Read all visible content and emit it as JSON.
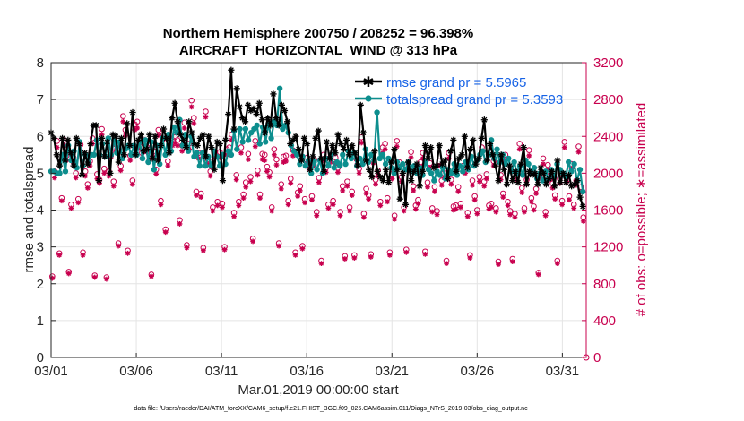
{
  "chart_data": {
    "type": "line",
    "title": "Northern Hemisphere 200750 / 208252 = 96.398%",
    "subtitle": "AIRCRAFT_HORIZONTAL_WIND @ 313 hPa",
    "xlabel": "Mar.01,2019 00:00:00 start",
    "ylabel": "rmse and totalspread",
    "ylabel_right": "# of obs: o=possible; ∗=assimilated",
    "footnote": "data file: /Users/raeder/DAI/ATM_forcXX/CAM6_setup/f.e21.FHIST_BGC.f09_025.CAM6assim.011/Diags_NTrS_2019-03/obs_diag_output.nc",
    "xlim": [
      1,
      32.4
    ],
    "ylim": [
      0,
      8
    ],
    "ylim_right": [
      0,
      3200
    ],
    "x_tick_values": [
      1,
      6,
      11,
      16,
      21,
      26,
      31
    ],
    "x_ticks": [
      "03/01",
      "03/06",
      "03/11",
      "03/16",
      "03/21",
      "03/26",
      "03/31"
    ],
    "y_ticks": [
      "0",
      "1",
      "2",
      "3",
      "4",
      "5",
      "6",
      "7",
      "8"
    ],
    "y_ticks_right": [
      "0",
      "400",
      "800",
      "1200",
      "1600",
      "2000",
      "2400",
      "2800",
      "3200"
    ],
    "grid": true,
    "legend": "top-right",
    "colors": {
      "rmse": "#000000",
      "totalspread": "#0d8e8e",
      "obs": "#c8004e",
      "legend_text": "#1763e6",
      "grid": "#e4e4e4"
    },
    "series": [
      {
        "name": "rmse grand pr = 5.5965",
        "axis": "left",
        "marker": "star",
        "values": [
          6.1,
          5.95,
          5.5,
          5.2,
          5.95,
          5.35,
          5.9,
          5.55,
          5.2,
          5.95,
          5.8,
          4.95,
          5.55,
          5.25,
          5.8,
          6.3,
          6.3,
          4.8,
          5.95,
          5.45,
          5.85,
          5.0,
          6.05,
          6.0,
          5.3,
          5.95,
          5.5,
          6.35,
          5.75,
          6.65,
          5.5,
          5.9,
          6.05,
          5.6,
          5.65,
          6.05,
          5.4,
          6.0,
          5.35,
          5.75,
          6.2,
          5.95,
          5.55,
          6.5,
          6.9,
          6.4,
          6.05,
          5.9,
          5.7,
          6.4,
          6.1,
          5.8,
          5.75,
          5.95,
          6.05,
          5.45,
          6.0,
          5.7,
          5.1,
          5.85,
          5.8,
          4.8,
          5.9,
          6.6,
          7.8,
          6.2,
          7.3,
          6.8,
          6.5,
          6.4,
          6.85,
          6.7,
          6.75,
          6.6,
          6.9,
          6.45,
          6.1,
          6.5,
          6.3,
          7.15,
          6.5,
          6.3,
          6.85,
          6.7,
          6.4,
          5.8,
          5.9,
          6.0,
          5.65,
          5.35,
          5.95,
          5.8,
          5.1,
          5.45,
          5.95,
          6.15,
          5.4,
          5.05,
          5.85,
          5.4,
          5.75,
          5.55,
          6.05,
          5.8,
          5.65,
          5.9,
          5.5,
          5.75,
          5.55,
          5.2,
          6.85,
          6.1,
          5.35,
          5.1,
          4.9,
          5.6,
          5.05,
          4.9,
          4.8,
          5.1,
          4.75,
          5.3,
          5.65,
          5.1,
          4.3,
          5.0,
          4.15,
          5.3,
          4.8,
          5.05,
          5.25,
          4.65,
          5.05,
          5.75,
          5.4,
          5.7,
          5.15,
          5.2,
          5.75,
          5.25,
          5.35,
          4.85,
          5.6,
          5.9,
          5.05,
          5.4,
          5.5,
          6.0,
          5.15,
          5.65,
          5.9,
          5.25,
          5.4,
          5.95,
          6.45,
          5.35,
          5.8,
          5.5,
          5.2,
          4.8,
          5.5,
          5.1,
          4.7,
          5.2,
          4.8,
          5.05,
          4.75,
          5.25,
          5.7,
          4.7,
          5.05,
          4.95,
          5.0,
          4.7,
          5.15,
          5.0,
          4.7,
          4.85,
          5.05,
          4.65,
          5.35,
          4.75,
          5.0,
          4.75,
          4.95,
          4.65,
          4.7,
          4.8,
          4.35,
          4.1
        ]
      },
      {
        "name": "totalspread grand pr = 5.3593",
        "axis": "left",
        "marker": "dot",
        "values": [
          5.05,
          5.05,
          5.0,
          5.0,
          5.5,
          5.05,
          5.75,
          5.35,
          5.6,
          5.15,
          5.85,
          5.2,
          5.5,
          5.3,
          5.5,
          5.5,
          5.9,
          5.5,
          5.8,
          5.45,
          5.95,
          5.5,
          5.9,
          5.55,
          5.85,
          5.4,
          5.65,
          5.75,
          5.5,
          5.75,
          5.5,
          5.85,
          5.4,
          5.9,
          5.3,
          5.85,
          5.1,
          5.75,
          5.25,
          5.95,
          5.5,
          6.05,
          5.6,
          6.25,
          6.1,
          6.45,
          5.75,
          6.05,
          5.6,
          6.0,
          5.45,
          5.55,
          5.2,
          5.55,
          5.2,
          5.45,
          5.2,
          5.6,
          5.45,
          5.2,
          5.5,
          5.25,
          5.6,
          5.5,
          6.15,
          5.65,
          6.2,
          5.85,
          6.2,
          5.9,
          6.1,
          6.2,
          6.3,
          5.8,
          6.25,
          5.85,
          6.35,
          5.95,
          6.4,
          6.3,
          7.3,
          6.2,
          6.3,
          6.1,
          5.75,
          5.6,
          5.5,
          5.25,
          5.45,
          5.2,
          5.35,
          5.0,
          5.3,
          5.1,
          5.35,
          5.0,
          5.4,
          5.2,
          5.5,
          5.15,
          5.3,
          5.2,
          5.5,
          5.25,
          5.6,
          5.4,
          5.55,
          5.2,
          5.4,
          5.25,
          5.65,
          5.3,
          5.5,
          5.35,
          6.65,
          5.4,
          5.5,
          5.25,
          5.4,
          5.15,
          5.0,
          5.3,
          5.15,
          5.25,
          5.1,
          5.3,
          5.05,
          5.2,
          5.0,
          5.15,
          4.95,
          5.3,
          5.1,
          5.0,
          4.8,
          5.05,
          4.95,
          5.15,
          4.85,
          5.1,
          5.0,
          5.25,
          4.95,
          5.2,
          5.05,
          5.3,
          5.1,
          5.45,
          5.2,
          5.35,
          5.5,
          5.6,
          5.3,
          5.5,
          5.9,
          5.4,
          5.65,
          5.3,
          5.5,
          5.25,
          5.4,
          5.05,
          5.3,
          5.0,
          5.2,
          4.95,
          5.35,
          5.25,
          5.0,
          5.15,
          4.85,
          5.0,
          4.8,
          5.05,
          4.85,
          5.1,
          4.9,
          5.25,
          5.1,
          5.0,
          4.9,
          5.3,
          5.05,
          5.25,
          4.8,
          5.1,
          4.5
        ]
      },
      {
        "name": "possible",
        "axis": "right",
        "marker": "circle",
        "values": [
          880,
          2020,
          2350,
          1130,
          1730,
          2360,
          2190,
          930,
          1660,
          2170,
          2000,
          1720,
          2310,
          1140,
          2020,
          1880,
          2130,
          2380,
          890,
          1990,
          1930,
          2480,
          2050,
          870,
          2020,
          2240,
          1910,
          2310,
          1240,
          2080,
          2620,
          2470,
          1160,
          2190,
          1920,
          2530,
          2560,
          2330,
          2220,
          2360,
          2290,
          2210,
          900,
          2240,
          2040,
          2470,
          1700,
          2420,
          1390,
          2130,
          2380,
          2360,
          2390,
          2360,
          1490,
          2300,
          2550,
          1220,
          2320,
          2790,
          2600,
          1800,
          2220,
          1780,
          1190,
          2670,
          2150,
          2020,
          1630,
          2230,
          1690,
          2230,
          1670,
          1200,
          2260,
          2280,
          2420,
          1570,
          1980,
          1690,
          2280,
          1770,
          1900,
          2210,
          1960,
          1290,
          2350,
          2030,
          1770,
          2210,
          2200,
          2070,
          2010,
          1630,
          2260,
          2150,
          1240,
          1880,
          2180,
          2190,
          1700,
          1940,
          2250,
          1140,
          1790,
          1860,
          1210,
          1720,
          2170,
          2090,
          1750,
          2150,
          1580,
          1950,
          1050,
          2200,
          2060,
          1660,
          2180,
          1700,
          2170,
          2060,
          1580,
          1860,
          1100,
          1910,
          1630,
          1800,
          1110,
          2150,
          2050,
          2390,
          1560,
          1830,
          1760,
          1120,
          2170,
          1930,
          2030,
          1690,
          2280,
          2320,
          1730,
          1140,
          1990,
          1540,
          2350,
          2120,
          1960,
          1630,
          1170,
          2080,
          2230,
          1860,
          1650,
          1710,
          2120,
          2220,
          1150,
          1900,
          2110,
          1620,
          1850,
          1590,
          2130,
          1920,
          2000,
          1050,
          2220,
          1930,
          1640,
          1650,
          1850,
          1670,
          2080,
          2050,
          1570,
          1110,
          1920,
          1750,
          1600,
          1960,
          2280,
          1910,
          1990,
          1650,
          1670,
          2130,
          1620,
          1040,
          1980,
          1780,
          2200,
          1690,
          1590,
          1070,
          1560,
          1970,
          2320,
          1840,
          1620,
          1930,
          2250,
          1730,
          1640,
          1830,
          920,
          1990,
          2160,
          1580,
          2090,
          1980,
          1890,
          1760,
          1050,
          1940,
          1700,
          2340,
          1960,
          1750,
          2100,
          1660,
          1920,
          2290,
          1850,
          1520
        ]
      },
      {
        "name": "assimilated",
        "axis": "right",
        "marker": "star",
        "values": [
          860,
          1950,
          2280,
          1110,
          1700,
          2300,
          2140,
          910,
          1620,
          2110,
          1950,
          1680,
          2250,
          1110,
          1970,
          1840,
          2080,
          2320,
          870,
          1940,
          1890,
          2420,
          2000,
          850,
          1970,
          2180,
          1860,
          2250,
          1210,
          2030,
          2560,
          2410,
          1130,
          2140,
          1880,
          2470,
          2490,
          2270,
          2160,
          2300,
          2230,
          2150,
          880,
          2180,
          1990,
          2410,
          1660,
          2360,
          1360,
          2080,
          2320,
          2300,
          2330,
          2300,
          1450,
          2240,
          2490,
          1190,
          2260,
          2720,
          2540,
          1760,
          2160,
          1740,
          1160,
          2610,
          2100,
          1970,
          1590,
          2170,
          1650,
          2170,
          1630,
          1170,
          2200,
          2220,
          2360,
          1530,
          1930,
          1650,
          2220,
          1730,
          1850,
          2150,
          1910,
          1260,
          2290,
          1980,
          1730,
          2150,
          2140,
          2020,
          1960,
          1590,
          2200,
          2090,
          1210,
          1830,
          2120,
          2130,
          1660,
          1890,
          2190,
          1110,
          1750,
          1810,
          1180,
          1680,
          2110,
          2040,
          1710,
          2090,
          1540,
          1900,
          1020,
          2140,
          2010,
          1620,
          2120,
          1660,
          2110,
          2010,
          1540,
          1810,
          1070,
          1860,
          1590,
          1760,
          1080,
          2090,
          2000,
          2330,
          1520,
          1780,
          1720,
          1090,
          2110,
          1880,
          1980,
          1650,
          2220,
          2260,
          1690,
          1110,
          1940,
          1500,
          2290,
          2070,
          1910,
          1590,
          1140,
          2030,
          2170,
          1810,
          1610,
          1670,
          2070,
          2160,
          1120,
          1850,
          2060,
          1580,
          1800,
          1550,
          2080,
          1870,
          1950,
          1020,
          2160,
          1880,
          1600,
          1610,
          1800,
          1630,
          2030,
          2000,
          1530,
          1080,
          1870,
          1710,
          1560,
          1910,
          2220,
          1860,
          1940,
          1610,
          1630,
          2080,
          1580,
          1010,
          1930,
          1740,
          2140,
          1650,
          1550,
          1040,
          1520,
          1920,
          2260,
          1790,
          1580,
          1880,
          2190,
          1690,
          1600,
          1780,
          900,
          1940,
          2100,
          1540,
          2040,
          1930,
          1840,
          1720,
          1020,
          1890,
          1660,
          2280,
          1910,
          1710,
          2050,
          1620,
          1870,
          2230,
          1800,
          1480
        ]
      }
    ]
  }
}
